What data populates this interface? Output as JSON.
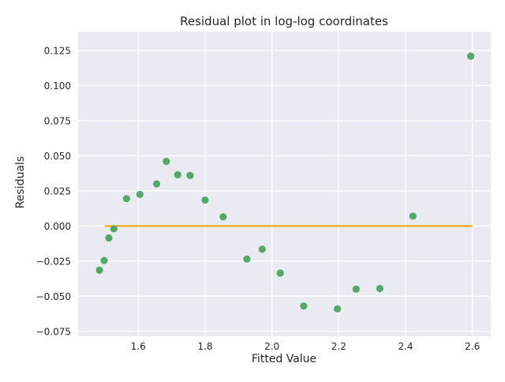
{
  "chart_data": {
    "type": "scatter",
    "title": "Residual plot in log-log coordinates",
    "xlabel": "Fitted Value",
    "ylabel": "Residuals",
    "xlim": [
      1.42,
      2.655
    ],
    "ylim": [
      -0.0785,
      0.1385
    ],
    "xticks": [
      1.6,
      1.8,
      2.0,
      2.2,
      2.4,
      2.6
    ],
    "yticks": [
      -0.075,
      -0.05,
      -0.025,
      0.0,
      0.025,
      0.05,
      0.075,
      0.1,
      0.125
    ],
    "xtick_labels": [
      "1.6",
      "1.8",
      "2.0",
      "2.2",
      "2.4",
      "2.6"
    ],
    "ytick_labels": [
      "−0.075",
      "−0.050",
      "−0.025",
      "0.000",
      "0.025",
      "0.050",
      "0.075",
      "0.100",
      "0.125"
    ],
    "grid": true,
    "series": [
      {
        "type": "scatter",
        "color": "#55a868",
        "x": [
          1.484,
          1.498,
          1.512,
          1.527,
          1.565,
          1.605,
          1.655,
          1.684,
          1.718,
          1.755,
          1.8,
          1.854,
          1.925,
          1.971,
          2.025,
          2.095,
          2.196,
          2.252,
          2.323,
          2.422,
          2.595
        ],
        "y": [
          -0.0315,
          -0.0245,
          -0.0085,
          -0.002,
          0.0195,
          0.0225,
          0.03,
          0.046,
          0.0365,
          0.036,
          0.0185,
          0.0065,
          -0.0235,
          -0.0165,
          -0.0335,
          -0.057,
          -0.059,
          -0.045,
          -0.0445,
          0.007,
          0.121
        ]
      },
      {
        "type": "line",
        "color": "#ffa500",
        "x": [
          1.5,
          2.6
        ],
        "y": [
          0.0,
          0.0
        ]
      }
    ]
  }
}
